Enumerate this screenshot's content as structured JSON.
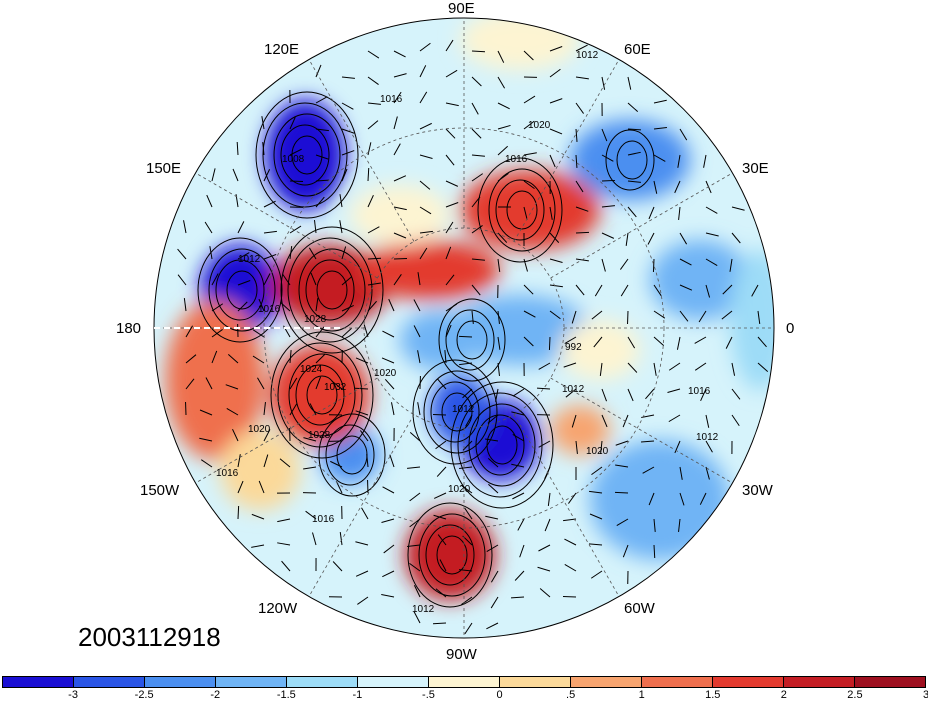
{
  "longitude_labels": [
    {
      "name": "lon-90e",
      "text": "90E"
    },
    {
      "name": "lon-60e",
      "text": "60E"
    },
    {
      "name": "lon-120e",
      "text": "120E"
    },
    {
      "name": "lon-150e",
      "text": "150E"
    },
    {
      "name": "lon-30e",
      "text": "30E"
    },
    {
      "name": "lon-180",
      "text": "180"
    },
    {
      "name": "lon-0",
      "text": "0"
    },
    {
      "name": "lon-150w",
      "text": "150W"
    },
    {
      "name": "lon-30w",
      "text": "30W"
    },
    {
      "name": "lon-120w",
      "text": "120W"
    },
    {
      "name": "lon-60w",
      "text": "60W"
    },
    {
      "name": "lon-90w",
      "text": "90W"
    }
  ],
  "timestamp": "2003112918",
  "colorbar": {
    "colors": [
      "#1a0fd4",
      "#2a55e6",
      "#4b8ff0",
      "#6fb4f5",
      "#9ddcf7",
      "#d6f3fb",
      "#fdf4d2",
      "#fbd99a",
      "#f7a46f",
      "#ef6f4e",
      "#e33a2f",
      "#c41d24",
      "#9e1020"
    ],
    "labels": [
      "-3",
      "-2.5",
      "-2",
      "-1.5",
      "-1",
      "-.5",
      "0",
      ".5",
      "1",
      "1.5",
      "2",
      "2.5",
      "3"
    ]
  },
  "contour_labels": [
    "1012",
    "1016",
    "1020",
    "1008",
    "1016",
    "1012",
    "1020",
    "1028",
    "1024",
    "1032",
    "1028",
    "1020",
    "1016",
    "1016",
    "1012",
    "1020",
    "1016",
    "1012",
    "992",
    "1012",
    "1016",
    "1020",
    "1012"
  ]
}
